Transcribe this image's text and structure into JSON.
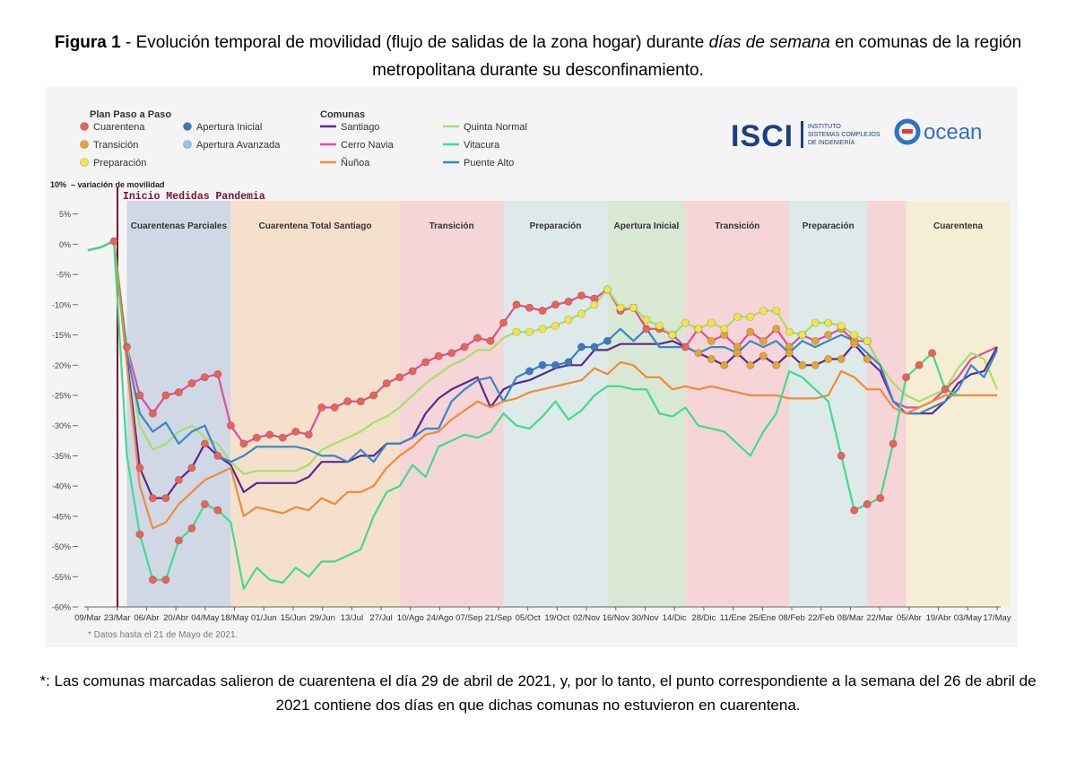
{
  "caption": {
    "figure_label": "Figura 1",
    "text_before": " - Evolución temporal de movilidad (flujo de salidas de la zona hogar) durante ",
    "text_italic": "días de semana",
    "text_after": " en comunas de la región metropolitana durante su desconfinamiento."
  },
  "footnote": "*: Las comunas marcadas salieron de cuarentena el día 29 de abril de 2021, y, por lo tanto, el punto correspondiente a la semana del 26 de abril de 2021 contiene dos días en que dichas comunas no estuvieron en cuarentena.",
  "logos": {
    "isci_text": "ISCI",
    "isci_sub": [
      "INSTITUTO",
      "SISTEMAS COMPLEJOS",
      "DE INGENIERÍA"
    ],
    "ocean_text": "ocean"
  },
  "chart_data": {
    "type": "line",
    "ylabel": "variación de movilidad",
    "ylim": [
      -60,
      10
    ],
    "y_ticks": [
      "10%",
      "5%",
      "0%",
      "-5%",
      "-10%",
      "-15%",
      "-20%",
      "-25%",
      "-30%",
      "-35%",
      "-40%",
      "-45%",
      "-50%",
      "-55%",
      "-60%"
    ],
    "x_ticks": [
      "09/Mar",
      "23/Mar",
      "06/Abr",
      "20/Abr",
      "04/May",
      "18/May",
      "01/Jun",
      "15/Jun",
      "29/Jun",
      "13/Jul",
      "27/Jul",
      "10/Ago",
      "24/Ago",
      "07/Sep",
      "21/Sep",
      "05/Oct",
      "19/Oct",
      "02/Nov",
      "16/Nov",
      "30/Nov",
      "14/Dic",
      "28/Dic",
      "11/Ene",
      "25/Ene",
      "08/Feb",
      "22/Feb",
      "08/Mar",
      "22/Mar",
      "05/Abr",
      "19/Abr",
      "03/May",
      "17/May"
    ],
    "note": "* Datos hasta el 21 de Mayo de 2021.",
    "event_label": "Inicio Medidas Pandemia",
    "phases": [
      {
        "label": "Cuarentenas Parciales",
        "start": 3,
        "end": 11,
        "kind": "cuarentena_parcial",
        "color": "#c9d2e3"
      },
      {
        "label": "Cuarentena Total Santiago",
        "start": 11,
        "end": 24,
        "kind": "cuarentena",
        "color": "#f5dcc4"
      },
      {
        "label": "Transición",
        "start": 24,
        "end": 32,
        "kind": "transicion",
        "color": "#f4cfd2"
      },
      {
        "label": "Preparación",
        "start": 32,
        "end": 40,
        "kind": "preparacion",
        "color": "#d9e6e6"
      },
      {
        "label": "Apertura Inicial",
        "start": 40,
        "end": 46,
        "kind": "apertura",
        "color": "#d3e4cf"
      },
      {
        "label": "Transición",
        "start": 46,
        "end": 54,
        "kind": "transicion",
        "color": "#f4cfd2"
      },
      {
        "label": "Preparación",
        "start": 54,
        "end": 60,
        "kind": "preparacion",
        "color": "#d9e6e6"
      },
      {
        "label": "",
        "start": 60,
        "end": 63,
        "kind": "transicion",
        "color": "#f4cfd2"
      },
      {
        "label": "Cuarentena",
        "start": 63,
        "end": 71,
        "kind": "cuarentena",
        "color": "#f6ebcf"
      }
    ],
    "legend": {
      "plan_title": "Plan Paso a Paso",
      "plan_items": [
        {
          "label": "Cuarentena",
          "color": "#e8635a"
        },
        {
          "label": "Apertura Inicial",
          "color": "#3f78c0"
        },
        {
          "label": "Transición",
          "color": "#e3a435"
        },
        {
          "label": "Apertura Avanzada",
          "color": "#98c2ea"
        },
        {
          "label": "Preparación",
          "color": "#f0e54a"
        }
      ],
      "comunas_title": "Comunas",
      "comunas_items": [
        {
          "label": "Santiago",
          "color": "#5b2a8e"
        },
        {
          "label": "Quinta Normal",
          "color": "#a6df6a"
        },
        {
          "label": "Cerro Navia",
          "color": "#de4e98"
        },
        {
          "label": "Vitacura",
          "color": "#3fdc8e"
        },
        {
          "label": "Ñuñoa",
          "color": "#f08a3c"
        },
        {
          "label": "Puente Alto",
          "color": "#3a86c8"
        }
      ]
    },
    "series": [
      {
        "name": "Cerro Navia",
        "color": "#de4e98",
        "values": [
          -1,
          -0.5,
          0.5,
          -17,
          -25,
          -28,
          -25,
          -24.5,
          -23,
          -22,
          -21.5,
          -30,
          -33,
          -32,
          -31.5,
          -32,
          -31,
          -31.5,
          -27,
          -27,
          -26,
          -26,
          -25,
          -23,
          -22,
          -21,
          -19.5,
          -18.5,
          -18,
          -17,
          -15.5,
          -16,
          -13,
          -10,
          -10.5,
          -11,
          -10,
          -9.5,
          -8.5,
          -9,
          -7.5,
          -11,
          -10.5,
          -14,
          -14,
          -15,
          -17,
          -14,
          -16,
          -15,
          -17,
          -14.5,
          -16,
          -14,
          -17,
          -15,
          -16,
          -15,
          -14,
          -16,
          -16,
          -20,
          -26,
          -27,
          -27,
          -26,
          -24,
          -22,
          -19,
          -18,
          -17
        ]
      },
      {
        "name": "Quinta Normal",
        "color": "#a6df6a",
        "values": [
          -1,
          -0.5,
          0.5,
          -17,
          -30,
          -34,
          -33,
          -31,
          -30,
          -32,
          -33,
          -36,
          -38,
          -37.5,
          -37.5,
          -37.5,
          -37.5,
          -36.5,
          -34,
          -33,
          -32,
          -31,
          -29.5,
          -28.5,
          -27,
          -25,
          -23,
          -21.5,
          -20,
          -19,
          -17.5,
          -17.5,
          -15.5,
          -14.5,
          -14.5,
          -14,
          -13.5,
          -12.5,
          -11.5,
          -10,
          -7.5,
          -10.5,
          -10.5,
          -12.5,
          -13.5,
          -15,
          -13,
          -14,
          -13,
          -14,
          -12,
          -12,
          -11,
          -11,
          -14.5,
          -15,
          -13,
          -13,
          -13.5,
          -15,
          -16,
          -20,
          -23,
          -25,
          -26,
          -25,
          -24,
          -20.5,
          -18,
          -19,
          -24
        ]
      },
      {
        "name": "Santiago",
        "color": "#5b2a8e",
        "values": [
          -1,
          -0.5,
          0.5,
          -19,
          -37,
          -42,
          -42,
          -39,
          -37,
          -33,
          -35,
          -36.5,
          -41,
          -39.5,
          -39.5,
          -39.5,
          -39.5,
          -38.5,
          -36,
          -36,
          -36,
          -35,
          -35,
          -33,
          -33,
          -32,
          -28,
          -25.5,
          -24,
          -23,
          -22,
          -27,
          -24,
          -23,
          -22.5,
          -21.5,
          -20.5,
          -20,
          -20,
          -17.5,
          -17.5,
          -16.5,
          -16.5,
          -16.5,
          -16.5,
          -16,
          -17,
          -18,
          -19,
          -20,
          -18,
          -20,
          -18.5,
          -20,
          -18,
          -20,
          -20,
          -19,
          -19,
          -16.5,
          -19,
          -21,
          -26,
          -28,
          -28,
          -28,
          -26,
          -23,
          -21.5,
          -21,
          -17
        ]
      },
      {
        "name": "Puente Alto",
        "color": "#3a86c8",
        "values": [
          -1,
          -0.5,
          0.5,
          -18,
          -28,
          -31,
          -29.5,
          -33,
          -31,
          -30,
          -35,
          -36,
          -35,
          -33.5,
          -33.5,
          -33.5,
          -33.5,
          -34,
          -35,
          -35,
          -36,
          -34,
          -36,
          -33,
          -33,
          -32,
          -30.5,
          -30.5,
          -26,
          -24,
          -22.5,
          -22,
          -26,
          -22,
          -21,
          -20,
          -20,
          -19.5,
          -17,
          -17,
          -16,
          -14,
          -16,
          -14,
          -17,
          -17,
          -17,
          -18,
          -17,
          -17,
          -18,
          -16,
          -17,
          -16,
          -18,
          -16,
          -17,
          -16,
          -15,
          -16,
          -18,
          -20,
          -26,
          -28,
          -28,
          -27,
          -26,
          -24,
          -20,
          -22,
          -17.5
        ]
      },
      {
        "name": "Ñuñoa",
        "color": "#f08a3c",
        "values": [
          -1,
          -0.5,
          0.5,
          -20,
          -40,
          -47,
          -46,
          -43,
          -41,
          -39,
          -38,
          -37,
          -45,
          -43.5,
          -44,
          -44.5,
          -43.5,
          -44,
          -42,
          -43,
          -41,
          -41,
          -40,
          -37,
          -35,
          -33.5,
          -31.5,
          -31,
          -29,
          -27.5,
          -26,
          -27,
          -26,
          -25.5,
          -24.5,
          -24,
          -23.5,
          -23,
          -22.5,
          -20.5,
          -21.5,
          -19.5,
          -20,
          -22,
          -22,
          -24,
          -23.5,
          -24,
          -23.5,
          -24,
          -24.5,
          -25,
          -25,
          -25,
          -25.5,
          -25.5,
          -25.5,
          -25,
          -21,
          -22,
          -24,
          -24,
          -27,
          -28,
          -27,
          -26,
          -25,
          -25,
          -25,
          -25,
          -25
        ]
      },
      {
        "name": "Vitacura",
        "color": "#3fdc8e",
        "values": [
          -1,
          -0.5,
          0.5,
          -35,
          -48,
          -55.5,
          -55.5,
          -49,
          -47,
          -43,
          -44,
          -46,
          -57,
          -53.5,
          -55.5,
          -56,
          -53.5,
          -55,
          -52.5,
          -52.5,
          -51.5,
          -50.5,
          -45,
          -41,
          -40,
          -36.5,
          -38.5,
          -33.5,
          -32.5,
          -31.5,
          -32,
          -31,
          -28,
          -30,
          -30.5,
          -28.5,
          -26,
          -29,
          -27.5,
          -25,
          -23.5,
          -23.5,
          -24,
          -24,
          -28,
          -28.5,
          -27,
          -30,
          -30.5,
          -31,
          -33,
          -35,
          -31,
          -28,
          -21,
          -22,
          -24,
          -26,
          -35,
          -44,
          -43,
          -42,
          -33,
          -22,
          -20,
          -18,
          -24,
          -25
        ]
      }
    ],
    "plan_markers": [
      {
        "series": "Cerro Navia",
        "kind": "cuarentena",
        "from": 2,
        "to": 46
      },
      {
        "series": "Cerro Navia",
        "kind": "transicion",
        "from": 47,
        "to": 60
      },
      {
        "series": "Quinta Normal",
        "kind": "preparacion",
        "from": 33,
        "to": 60
      },
      {
        "series": "Santiago",
        "kind": "cuarentena",
        "from": 4,
        "to": 10
      },
      {
        "series": "Santiago",
        "kind": "transicion",
        "from": 47,
        "to": 60
      },
      {
        "series": "Puente Alto",
        "kind": "apertura",
        "from": 34,
        "to": 40
      },
      {
        "series": "Vitacura",
        "kind": "cuarentena",
        "from": 4,
        "to": 10
      },
      {
        "series": "Vitacura",
        "kind": "cuarentena",
        "from": 58,
        "to": 66
      }
    ]
  }
}
